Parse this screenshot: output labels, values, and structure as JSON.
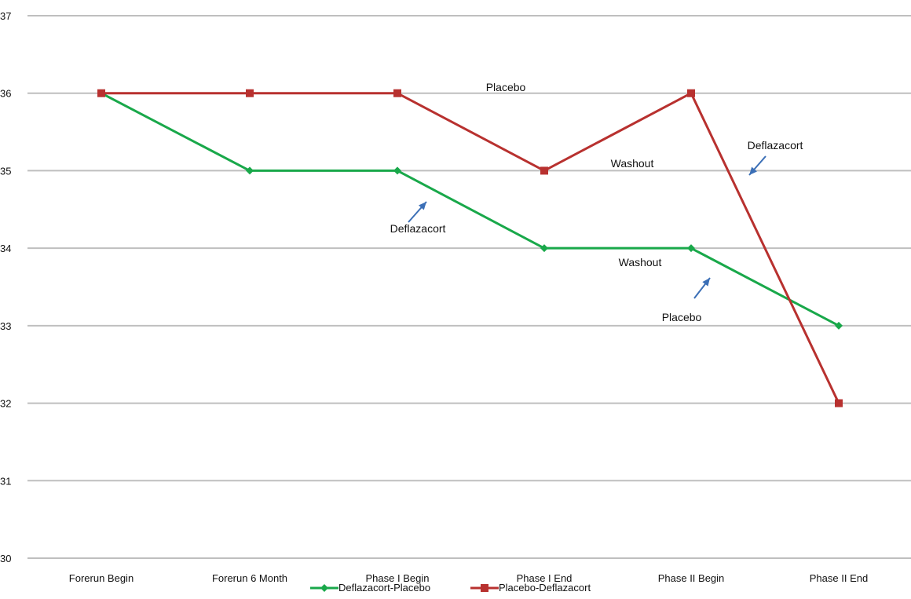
{
  "chart_data": {
    "type": "line",
    "categories": [
      "Forerun Begin",
      "Forerun 6 Month",
      "Phase I Begin",
      "Phase I End",
      "Phase II Begin",
      "Phase II  End"
    ],
    "ylim": [
      30,
      37
    ],
    "yticks": [
      "30",
      "31",
      "32",
      "33",
      "34",
      "35",
      "36",
      "37"
    ],
    "grid": true,
    "legend_position": "bottom",
    "series": [
      {
        "name": "Deflazacort-Placebo",
        "values": [
          36,
          35,
          35,
          34,
          34,
          33
        ],
        "color": "#19A84A",
        "marker": "diamond"
      },
      {
        "name": "Placebo-Deflazacort",
        "values": [
          36,
          36,
          36,
          35,
          36,
          32
        ],
        "color": "#B8312F",
        "marker": "square"
      }
    ],
    "annotations": [
      {
        "text": "Placebo"
      },
      {
        "text": "Washout"
      },
      {
        "text": "Deflazacort"
      },
      {
        "text": "Deflazacort"
      },
      {
        "text": "Washout"
      },
      {
        "text": "Placebo"
      }
    ],
    "arrow_color": "#3B6FB6",
    "grid_color": "#BFBFBF"
  }
}
